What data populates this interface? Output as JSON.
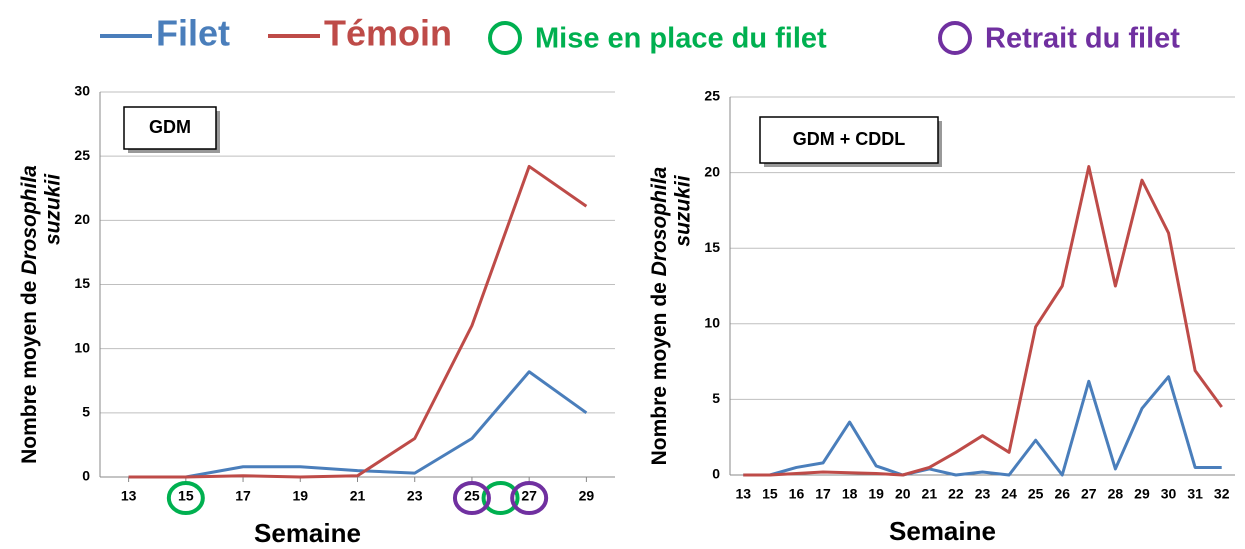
{
  "chart_data": [
    {
      "type": "line",
      "annotation": "GDM",
      "xlabel": "Semaine",
      "ylabel": [
        "Nombre moyen de",
        "Drosophila",
        "suzukii"
      ],
      "x": [
        13,
        15,
        17,
        19,
        21,
        23,
        25,
        27,
        29
      ],
      "xlim": [
        12,
        30
      ],
      "xticks": [
        13,
        15,
        17,
        19,
        21,
        23,
        25,
        27,
        29
      ],
      "ylim": [
        0,
        30
      ],
      "yticks": [
        0,
        5,
        10,
        15,
        20,
        25,
        30
      ],
      "grid": true,
      "series": [
        {
          "name": "Filet",
          "color": "#4a7ebb",
          "values": [
            0,
            0,
            0.8,
            0.8,
            0.5,
            0.3,
            3,
            8.2,
            5
          ]
        },
        {
          "name": "Témoin",
          "color": "#be4b48",
          "values": [
            0,
            0,
            0.1,
            0,
            0.1,
            3,
            11.8,
            24.2,
            21.1
          ]
        }
      ],
      "markers": [
        {
          "name": "Mise en place du filet",
          "color": "#00b050",
          "x": [
            15,
            26
          ]
        },
        {
          "name": "Retrait du filet",
          "color": "#7030a0",
          "x": [
            25,
            27
          ]
        }
      ]
    },
    {
      "type": "line",
      "annotation": "GDM + CDDL",
      "xlabel": "Semaine",
      "ylabel": [
        "Nombre moyen de",
        "Drosophila",
        "suzukii"
      ],
      "categories": [
        "13",
        "15",
        "16",
        "17",
        "18",
        "19",
        "20",
        "21",
        "22",
        "23",
        "24",
        "25",
        "26",
        "27",
        "28",
        "29",
        "30",
        "31",
        "32"
      ],
      "ylim": [
        0,
        25
      ],
      "yticks": [
        0,
        5,
        10,
        15,
        20,
        25
      ],
      "grid": true,
      "series": [
        {
          "name": "Filet",
          "color": "#4a7ebb",
          "values": [
            0,
            0,
            0.5,
            0.8,
            3.5,
            0.6,
            0,
            0.4,
            0,
            0.2,
            0,
            2.3,
            0,
            6.2,
            0.4,
            4.4,
            6.5,
            0.5,
            0.5
          ]
        },
        {
          "name": "Témoin",
          "color": "#be4b48",
          "values": [
            0,
            0,
            0.1,
            0.2,
            0.15,
            0.1,
            0,
            0.5,
            1.5,
            2.6,
            1.5,
            9.8,
            12.5,
            20.4,
            12.5,
            19.5,
            16,
            6.9,
            4.5
          ]
        }
      ]
    }
  ]
}
